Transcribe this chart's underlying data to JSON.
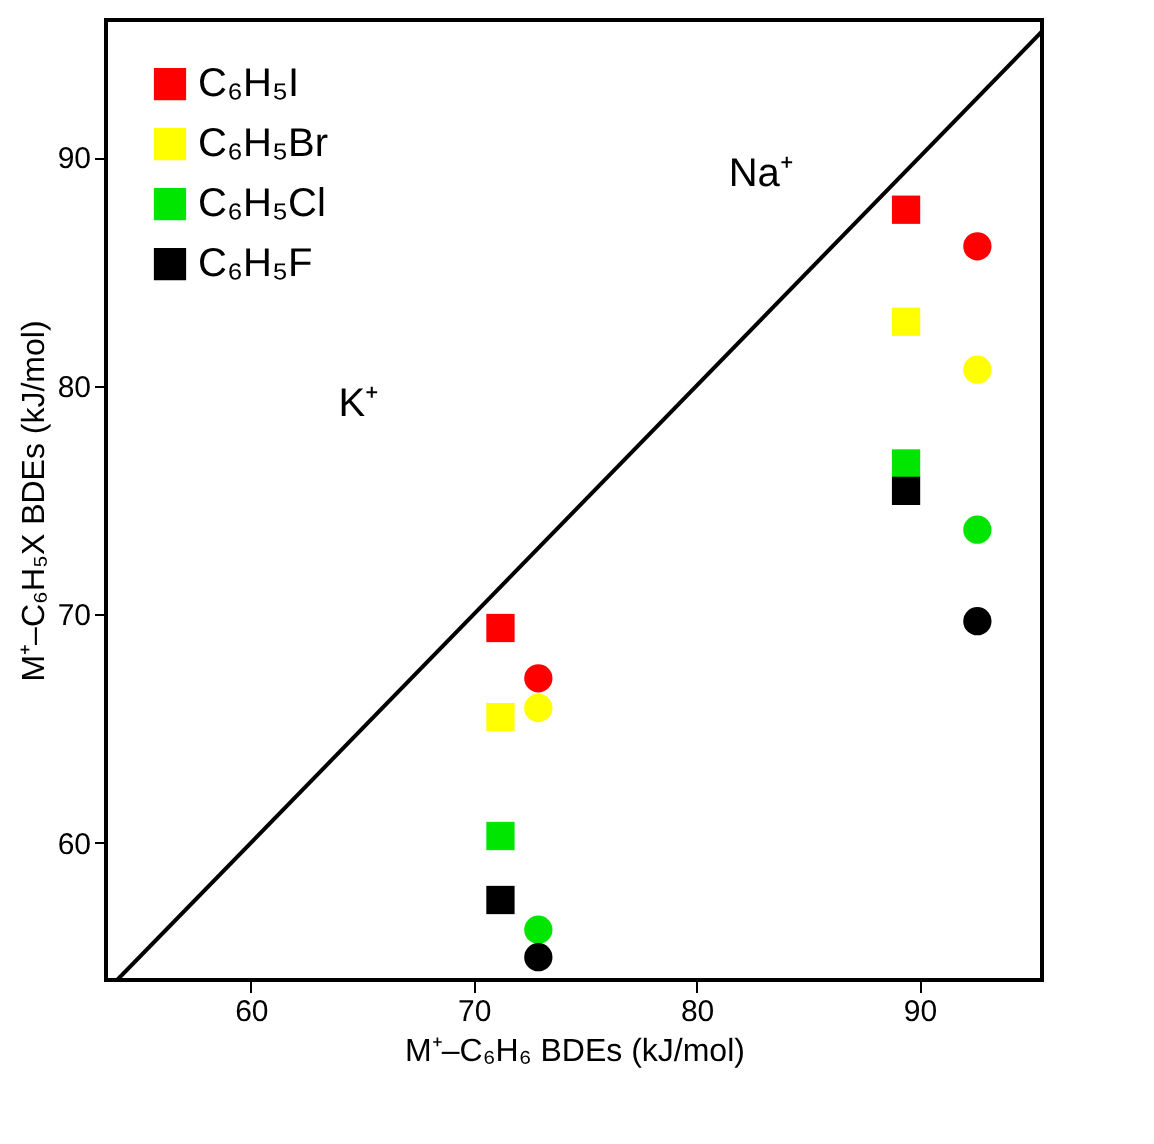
{
  "chart_data": {
    "type": "scatter",
    "xlabel": "M⁺–C₆H₆ BDEs (kJ/mol)",
    "ylabel": "M⁺–C₆H₅X BDEs (kJ/mol)",
    "xlim": [
      53.5,
      95.5
    ],
    "ylim": [
      54,
      96
    ],
    "xticks": [
      60,
      70,
      80,
      90
    ],
    "yticks": [
      60,
      70,
      80,
      90
    ],
    "grid": false,
    "legend": "top left",
    "series": [
      {
        "name": "C₆H₅I",
        "color": "#ff0000",
        "marker": "square",
        "x": [
          71.2,
          89.4
        ],
        "values": [
          69.4,
          87.7
        ]
      },
      {
        "color": "#ff0000",
        "marker": "circle",
        "x": [
          72.9,
          92.6
        ],
        "values": [
          67.2,
          86.1
        ]
      },
      {
        "name": "C₆H₅Br",
        "color": "#ffff00",
        "marker": "square",
        "x": [
          71.2,
          89.4
        ],
        "values": [
          65.5,
          82.8
        ]
      },
      {
        "color": "#ffff00",
        "marker": "circle",
        "x": [
          72.9,
          92.6
        ],
        "values": [
          65.9,
          80.7
        ]
      },
      {
        "name": "C₆H₅Cl",
        "color": "#00e600",
        "marker": "square",
        "x": [
          71.2,
          89.4
        ],
        "values": [
          60.3,
          76.6
        ]
      },
      {
        "color": "#00e600",
        "marker": "circle",
        "x": [
          72.9,
          92.6
        ],
        "values": [
          56.2,
          73.7
        ]
      },
      {
        "name": "C₆H₅F",
        "color": "#000000",
        "marker": "square",
        "x": [
          71.2,
          89.4
        ],
        "values": [
          57.5,
          75.4
        ]
      },
      {
        "color": "#000000",
        "marker": "circle",
        "x": [
          72.9,
          92.6
        ],
        "values": [
          55.0,
          69.7
        ]
      },
      {
        "type": "line",
        "color": "#000000",
        "x": [
          54,
          95.5
        ],
        "values": [
          54,
          95.5
        ]
      }
    ],
    "annotations": [
      "K⁺",
      "Na⁺"
    ]
  }
}
